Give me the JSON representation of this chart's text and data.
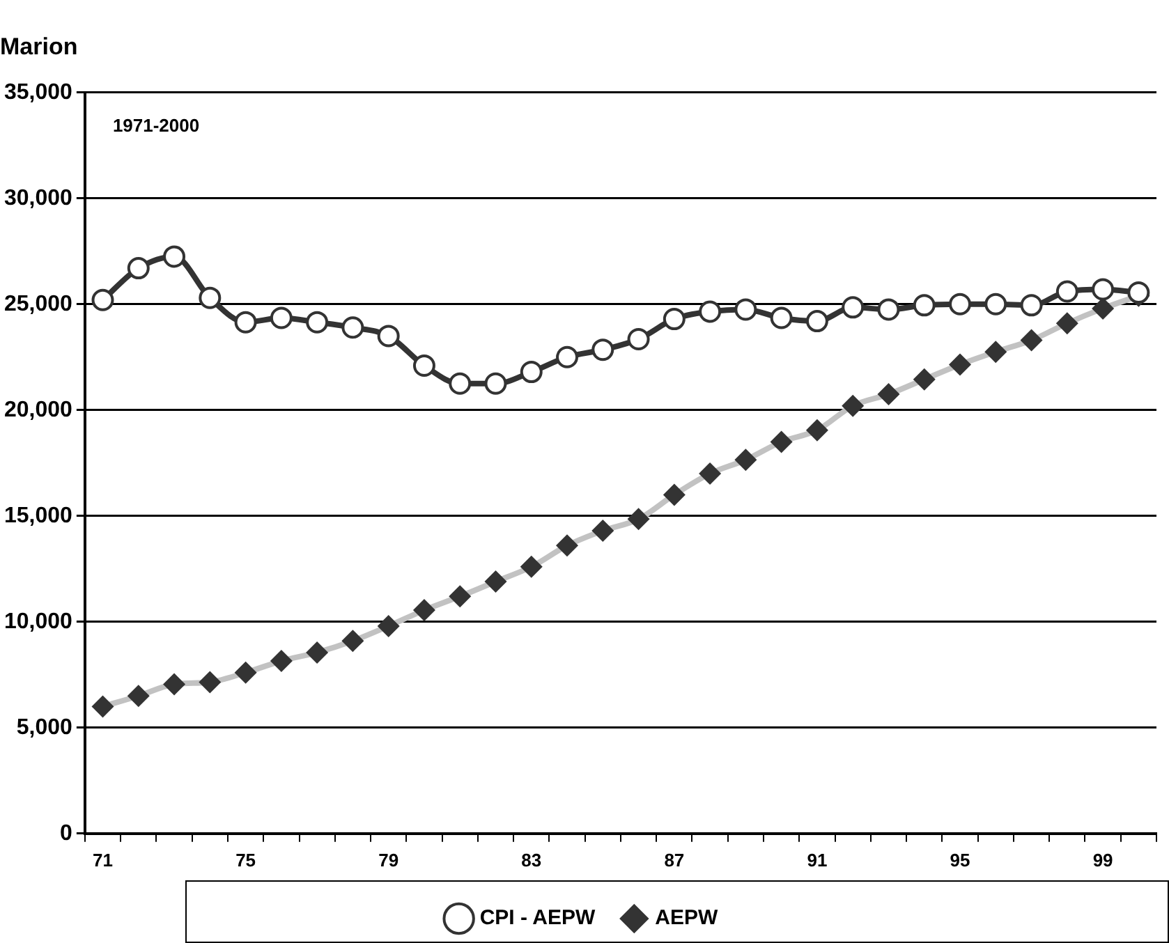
{
  "chart_data": {
    "type": "line",
    "title": "Marion",
    "annotations": [
      "1971-2000"
    ],
    "categories": [
      "71",
      null,
      null,
      null,
      "75",
      null,
      null,
      null,
      "79",
      null,
      null,
      null,
      "83",
      null,
      null,
      null,
      "87",
      null,
      null,
      null,
      "91",
      null,
      null,
      null,
      "95",
      null,
      null,
      null,
      "99",
      null
    ],
    "series": [
      {
        "name": "AEPW",
        "color": "#333333",
        "marker": "diamond",
        "values": [
          6000,
          6500,
          7050,
          7150,
          7600,
          8150,
          8550,
          9100,
          9800,
          10550,
          11200,
          11900,
          12600,
          13600,
          14300,
          14850,
          16000,
          17000,
          17650,
          18500,
          19050,
          20200,
          20750,
          21450,
          22150,
          22750,
          23300,
          24100,
          24800,
          25400
        ]
      },
      {
        "name": "CPI - AEPW",
        "color": "#333333",
        "marker": "circle",
        "values": [
          25200,
          26700,
          27250,
          25300,
          24150,
          24350,
          24150,
          23900,
          23500,
          22100,
          21250,
          21250,
          21800,
          22500,
          22850,
          23350,
          24300,
          24650,
          24750,
          24350,
          24200,
          24850,
          24750,
          24950,
          25000,
          25000,
          24950,
          25600,
          25700,
          25550
        ]
      }
    ],
    "ylim": [
      0,
      35000
    ],
    "yticks": [
      {
        "value": 0,
        "label": "0"
      },
      {
        "value": 5000,
        "label": "5,000"
      },
      {
        "value": 10000,
        "label": "10,000"
      },
      {
        "value": 15000,
        "label": "15,000"
      },
      {
        "value": 20000,
        "label": "20,000"
      },
      {
        "value": 25000,
        "label": "25,000"
      },
      {
        "value": 30000,
        "label": "30,000"
      },
      {
        "value": 35000,
        "label": "35,000"
      }
    ],
    "grid": "y",
    "legend": "bottom",
    "line_style": "solid"
  }
}
